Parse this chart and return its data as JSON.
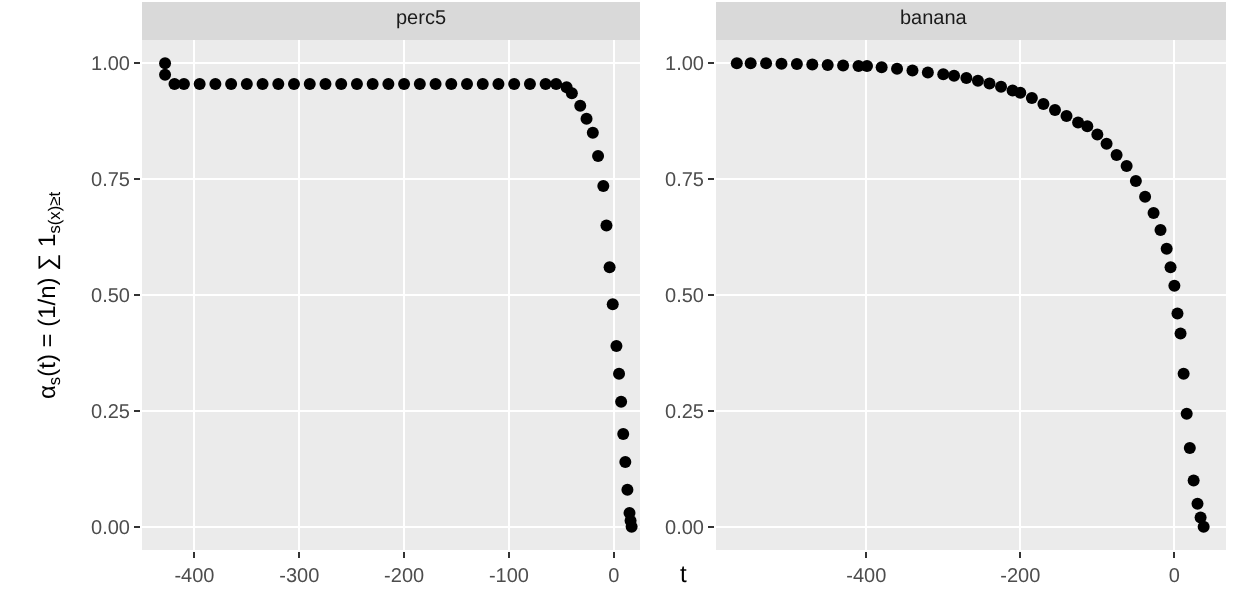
{
  "chart_data": [
    {
      "type": "scatter",
      "title": "perc5",
      "ylabel": "α$_{s}$(t) = (1/n) ∑ 1$_{s(x)≥t}$",
      "xlabel": "t",
      "marker": "circle",
      "grid": true,
      "xlim": [
        -450,
        25
      ],
      "xticks": [
        -400,
        -300,
        -200,
        -100,
        0
      ],
      "ylim": [
        -0.05,
        1.05
      ],
      "yticks": [
        {
          "value": 0,
          "label": "0.00"
        },
        {
          "value": 0.25,
          "label": "0.25"
        },
        {
          "value": 0.5,
          "label": "0.50"
        },
        {
          "value": 0.75,
          "label": "0.75"
        },
        {
          "value": 1,
          "label": "1.00"
        }
      ],
      "series": [
        {
          "color": "#000000",
          "x": [
            -428,
            -428,
            -419,
            -410,
            -395,
            -380,
            -365,
            -350,
            -335,
            -320,
            -305,
            -290,
            -275,
            -260,
            -245,
            -230,
            -215,
            -200,
            -185,
            -170,
            -155,
            -140,
            -125,
            -110,
            -95,
            -80,
            -65,
            -55,
            -45,
            -40,
            -32,
            -26,
            -20,
            -15,
            -10,
            -7,
            -4,
            -1,
            2.5,
            5,
            7,
            9,
            11,
            13,
            15,
            16,
            17
          ],
          "values": [
            1.0,
            0.975,
            0.955,
            0.955,
            0.955,
            0.955,
            0.955,
            0.955,
            0.955,
            0.955,
            0.955,
            0.955,
            0.955,
            0.955,
            0.955,
            0.955,
            0.955,
            0.955,
            0.955,
            0.955,
            0.955,
            0.955,
            0.955,
            0.955,
            0.955,
            0.955,
            0.955,
            0.955,
            0.948,
            0.935,
            0.908,
            0.88,
            0.85,
            0.8,
            0.735,
            0.65,
            0.56,
            0.48,
            0.39,
            0.33,
            0.27,
            0.2,
            0.14,
            0.08,
            0.03,
            0.013,
            0.0
          ]
        }
      ]
    },
    {
      "type": "scatter",
      "title": "banana",
      "marker": "circle",
      "grid": true,
      "xlim": [
        -595,
        67
      ],
      "xticks": [
        -400,
        -200,
        0
      ],
      "ylim": [
        -0.05,
        1.05
      ],
      "yticks": [
        {
          "value": 0,
          "label": "0.00"
        },
        {
          "value": 0.25,
          "label": "0.25"
        },
        {
          "value": 0.5,
          "label": "0.50"
        },
        {
          "value": 0.75,
          "label": "0.75"
        },
        {
          "value": 1,
          "label": "1.00"
        }
      ],
      "series": [
        {
          "color": "#000000",
          "x": [
            -568,
            -550,
            -530,
            -510,
            -490,
            -470,
            -450,
            -430,
            -410,
            -399,
            -380,
            -360,
            -340,
            -320,
            -300,
            -286,
            -270,
            -255,
            -240,
            -225,
            -210,
            -200,
            -185,
            -170,
            -155,
            -140,
            -125,
            -113,
            -100,
            -88,
            -75,
            -62,
            -50,
            -38,
            -27,
            -18,
            -10,
            -5,
            0,
            4,
            8,
            12,
            16,
            20,
            25,
            30,
            34,
            38
          ],
          "values": [
            1.0,
            1.0,
            1.0,
            0.999,
            0.998,
            0.997,
            0.996,
            0.995,
            0.994,
            0.994,
            0.991,
            0.988,
            0.984,
            0.98,
            0.976,
            0.973,
            0.968,
            0.962,
            0.956,
            0.949,
            0.941,
            0.936,
            0.925,
            0.912,
            0.899,
            0.886,
            0.872,
            0.864,
            0.846,
            0.826,
            0.802,
            0.778,
            0.746,
            0.712,
            0.677,
            0.64,
            0.6,
            0.56,
            0.52,
            0.46,
            0.417,
            0.33,
            0.244,
            0.17,
            0.1,
            0.05,
            0.02,
            0.0
          ]
        }
      ]
    }
  ]
}
